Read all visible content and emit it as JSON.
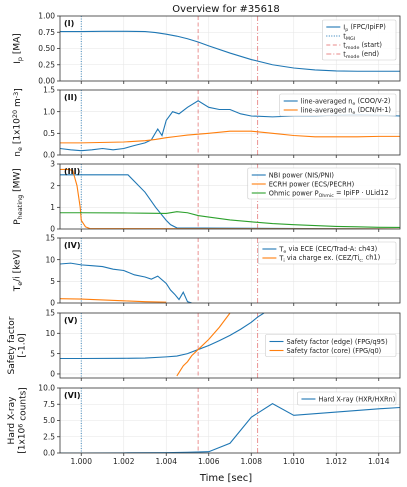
{
  "chart_data": {
    "type": "line",
    "title": "Overview for #35618",
    "xlabel": "Time [sec]",
    "xlim": [
      0.999,
      1.015
    ],
    "xticks": [
      "1.000",
      "1.002",
      "1.004",
      "1.006",
      "1.008",
      "1.010",
      "1.012",
      "1.014"
    ],
    "vlines": [
      {
        "x": 1.0,
        "color": "#1f77b4",
        "style": "dotted",
        "name": "t_MGI"
      },
      {
        "x": 1.0055,
        "color": "#d62728",
        "style": "dashed",
        "name": "t_mode (start)"
      },
      {
        "x": 1.0083,
        "color": "#d62728",
        "style": "dashdot",
        "name": "t_mode (end)"
      }
    ],
    "panels": [
      {
        "label": "(I)",
        "ylabel": "I_p [MA]",
        "ylim": [
          0,
          1.0
        ],
        "yticks": [
          "0.00",
          "0.25",
          "0.50",
          "0.75",
          "1.00"
        ],
        "legend_position": "top-right",
        "series": [
          {
            "name": "I_p (FPC/IpiFP)",
            "color": "#1f77b4",
            "x": [
              0.999,
              1.0,
              1.001,
              1.002,
              1.003,
              1.0035,
              1.004,
              1.0045,
              1.005,
              1.0055,
              1.006,
              1.007,
              1.008,
              1.009,
              1.01,
              1.011,
              1.012,
              1.013,
              1.015
            ],
            "y": [
              0.76,
              0.76,
              0.765,
              0.765,
              0.76,
              0.745,
              0.72,
              0.69,
              0.65,
              0.6,
              0.54,
              0.43,
              0.33,
              0.25,
              0.2,
              0.17,
              0.155,
              0.15,
              0.15
            ]
          }
        ],
        "legend_extra": [
          "t_MGI",
          "t_mode (start)",
          "t_mode (end)"
        ]
      },
      {
        "label": "(II)",
        "ylabel": "n_e [1x10^20 m^-3]",
        "ylim": [
          0,
          1.5
        ],
        "yticks": [
          "0.0",
          "0.5",
          "1.0",
          "1.5"
        ],
        "legend_position": "top-right",
        "series": [
          {
            "name": "line-averaged n_e (COO/V-2)",
            "color": "#1f77b4",
            "x": [
              0.999,
              0.9995,
              1.0,
              1.0005,
              1.001,
              1.0015,
              1.002,
              1.0025,
              1.003,
              1.0033,
              1.0036,
              1.0038,
              1.004,
              1.0043,
              1.0046,
              1.005,
              1.0055,
              1.006,
              1.0065,
              1.007,
              1.0075,
              1.008,
              1.009,
              1.01,
              1.011,
              1.012,
              1.013,
              1.014,
              1.015
            ],
            "y": [
              0.15,
              0.12,
              0.1,
              0.12,
              0.15,
              0.12,
              0.15,
              0.22,
              0.28,
              0.35,
              0.6,
              0.45,
              0.8,
              1.0,
              0.95,
              1.1,
              1.25,
              1.1,
              1.05,
              1.05,
              0.95,
              0.9,
              0.88,
              0.9,
              0.9,
              0.92,
              0.93,
              0.92,
              0.9
            ]
          },
          {
            "name": "line-averaged n_e (DCN/H-1)",
            "color": "#ff7f0e",
            "x": [
              0.999,
              1.0,
              1.002,
              1.003,
              1.0035,
              1.004,
              1.0045,
              1.005,
              1.006,
              1.007,
              1.008,
              1.009,
              1.01,
              1.011,
              1.012,
              1.013,
              1.014,
              1.015
            ],
            "y": [
              0.28,
              0.28,
              0.3,
              0.33,
              0.36,
              0.4,
              0.43,
              0.46,
              0.5,
              0.55,
              0.55,
              0.5,
              0.45,
              0.42,
              0.42,
              0.42,
              0.43,
              0.43
            ]
          }
        ]
      },
      {
        "label": "(III)",
        "ylabel": "P_heating [MW]",
        "ylim": [
          0,
          3
        ],
        "yticks": [
          "0",
          "1",
          "2",
          "3"
        ],
        "legend_position": "top-right",
        "series": [
          {
            "name": "NBI power (NIS/PNI)",
            "color": "#1f77b4",
            "x": [
              0.999,
              1.0,
              1.002,
              1.0022,
              1.003,
              1.0035,
              1.004,
              1.0042,
              1.0045,
              1.015
            ],
            "y": [
              2.5,
              2.5,
              2.5,
              2.5,
              1.7,
              1.0,
              0.4,
              0.2,
              0.05,
              0.0
            ]
          },
          {
            "name": "ECRH power (ECS/PECRH)",
            "color": "#ff7f0e",
            "x": [
              0.999,
              0.9994,
              0.9996,
              0.9998,
              0.99995,
              1.0,
              1.0002,
              1.0004,
              1.015
            ],
            "y": [
              2.75,
              2.75,
              2.7,
              2.0,
              1.0,
              0.4,
              0.1,
              0.02,
              0.0
            ]
          },
          {
            "name": "Ohmic power P_Ohmic = IpiFP · ULid12",
            "color": "#2ca02c",
            "x": [
              0.999,
              1.0,
              1.002,
              1.003,
              1.004,
              1.0045,
              1.005,
              1.0055,
              1.006,
              1.007,
              1.008,
              1.009,
              1.01,
              1.011,
              1.012,
              1.013,
              1.014,
              1.015
            ],
            "y": [
              0.75,
              0.75,
              0.74,
              0.73,
              0.72,
              0.8,
              0.75,
              0.62,
              0.55,
              0.42,
              0.33,
              0.25,
              0.2,
              0.16,
              0.12,
              0.1,
              0.08,
              0.07
            ]
          }
        ]
      },
      {
        "label": "(IV)",
        "ylabel": "T_e/i [keV]",
        "ylim": [
          0,
          15
        ],
        "yticks": [
          "0",
          "5",
          "10",
          "15"
        ],
        "legend_position": "top-right",
        "series": [
          {
            "name": "T_e via ECE (CEC/Trad-A: ch43)",
            "color": "#1f77b4",
            "x": [
              0.999,
              0.9995,
              1.0,
              1.0005,
              1.001,
              1.0015,
              1.002,
              1.0025,
              1.003,
              1.0033,
              1.0036,
              1.004,
              1.0042,
              1.0044,
              1.0046,
              1.0048,
              1.005,
              1.0052
            ],
            "y": [
              9.0,
              9.2,
              8.8,
              8.6,
              8.4,
              7.8,
              7.5,
              6.5,
              6.0,
              5.5,
              6.2,
              4.5,
              3.0,
              2.0,
              0.8,
              2.5,
              0.3,
              0.0
            ]
          },
          {
            "name": "T_i via charge ex. (CEZ/Ti_c: ch1)",
            "color": "#ff7f0e",
            "x": [
              0.999,
              1.0,
              1.001,
              1.002,
              1.003,
              1.004
            ],
            "y": [
              1.0,
              0.9,
              0.7,
              0.5,
              0.3,
              0.2
            ]
          }
        ]
      },
      {
        "label": "(V)",
        "ylabel": "Safety factor [-1.0]",
        "ylim": [
          -1.0,
          15
        ],
        "yticks": [
          "0",
          "5",
          "10",
          "15"
        ],
        "legend_position": "right",
        "series": [
          {
            "name": "Safety factor (edge) (FPG/q95)",
            "color": "#1f77b4",
            "x": [
              0.999,
              1.0,
              1.002,
              1.003,
              1.004,
              1.0045,
              1.005,
              1.0055,
              1.006,
              1.0065,
              1.007,
              1.0075,
              1.008,
              1.0083,
              1.0086
            ],
            "y": [
              3.8,
              3.8,
              3.85,
              3.9,
              4.2,
              4.4,
              5.0,
              6.0,
              7.0,
              8.2,
              9.5,
              11.0,
              12.7,
              14.0,
              15.0
            ]
          },
          {
            "name": "Safety factor (core) (FPG/q0)",
            "color": "#ff7f0e",
            "x": [
              1.0045,
              1.0048,
              1.005,
              1.0052,
              1.0055,
              1.006,
              1.0065,
              1.007
            ],
            "y": [
              -0.5,
              2.0,
              3.0,
              4.5,
              6.0,
              8.5,
              11.5,
              15.0
            ]
          }
        ]
      },
      {
        "label": "(VI)",
        "ylabel": "Hard X-ray [1x10^6 counts]",
        "ylim": [
          0,
          10
        ],
        "yticks": [
          "0.0",
          "2.5",
          "5.0",
          "7.5",
          "10.0"
        ],
        "legend_position": "top-right",
        "series": [
          {
            "name": "Hard X-ray (HXR/HXRn)",
            "color": "#1f77b4",
            "x": [
              0.999,
              1.0,
              1.002,
              1.004,
              1.005,
              1.006,
              1.007,
              1.008,
              1.009,
              1.01,
              1.012,
              1.014,
              1.015
            ],
            "y": [
              0.0,
              0.0,
              0.02,
              0.05,
              0.1,
              0.2,
              1.5,
              5.5,
              7.6,
              5.8,
              6.3,
              6.8,
              7.0
            ]
          }
        ]
      }
    ]
  }
}
